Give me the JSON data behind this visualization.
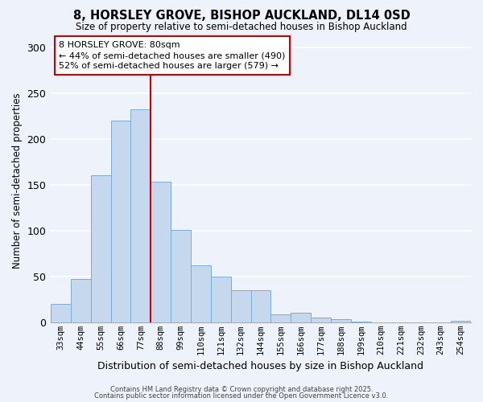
{
  "title": "8, HORSLEY GROVE, BISHOP AUCKLAND, DL14 0SD",
  "subtitle": "Size of property relative to semi-detached houses in Bishop Auckland",
  "xlabel": "Distribution of semi-detached houses by size in Bishop Auckland",
  "ylabel": "Number of semi-detached properties",
  "categories": [
    "33sqm",
    "44sqm",
    "55sqm",
    "66sqm",
    "77sqm",
    "88sqm",
    "99sqm",
    "110sqm",
    "121sqm",
    "132sqm",
    "144sqm",
    "155sqm",
    "166sqm",
    "177sqm",
    "188sqm",
    "199sqm",
    "210sqm",
    "221sqm",
    "232sqm",
    "243sqm",
    "254sqm"
  ],
  "values": [
    20,
    47,
    160,
    220,
    232,
    153,
    101,
    62,
    50,
    35,
    35,
    9,
    10,
    5,
    3,
    1,
    0,
    0,
    0,
    0,
    2
  ],
  "bar_color": "#c5d8ee",
  "bar_edge_color": "#7aadd4",
  "background_color": "#eef2fa",
  "grid_color": "#ffffff",
  "vline_color": "#cc0000",
  "annotation_title": "8 HORSLEY GROVE: 80sqm",
  "annotation_line1": "← 44% of semi-detached houses are smaller (490)",
  "annotation_line2": "52% of semi-detached houses are larger (579) →",
  "annotation_box_color": "#ffffff",
  "annotation_box_edge": "#cc0000",
  "ylim": [
    0,
    310
  ],
  "yticks": [
    0,
    50,
    100,
    150,
    200,
    250,
    300
  ],
  "footer1": "Contains HM Land Registry data © Crown copyright and database right 2025.",
  "footer2": "Contains public sector information licensed under the Open Government Licence v3.0."
}
